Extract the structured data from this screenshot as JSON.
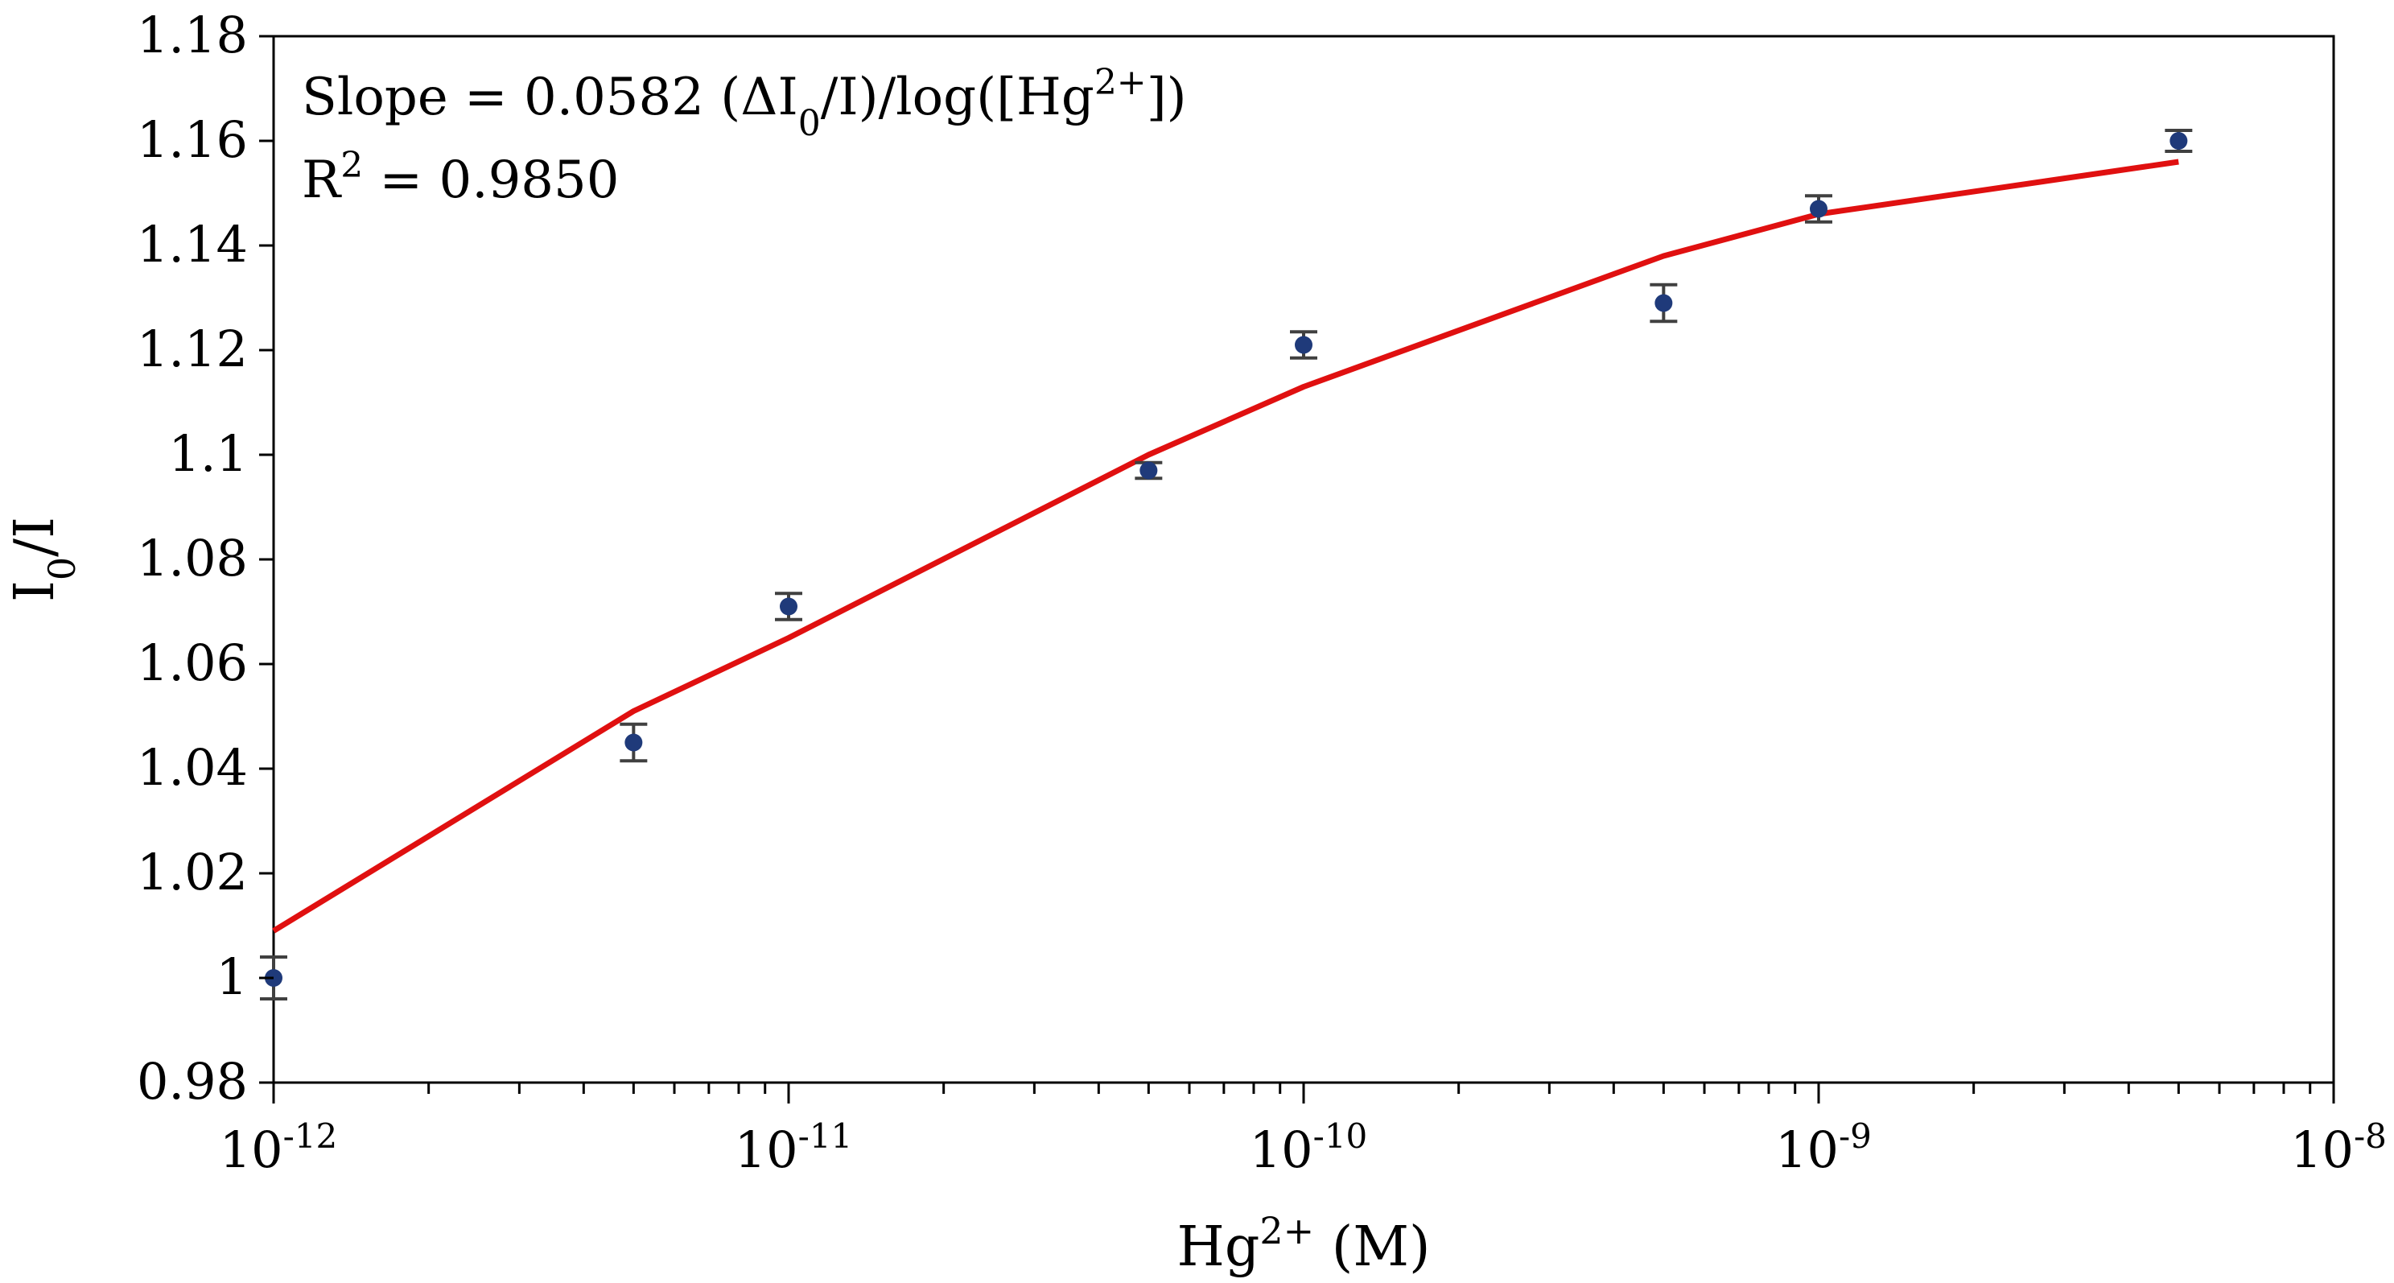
{
  "chart_data": {
    "type": "scatter",
    "xscale": "log",
    "xlim": [
      1e-12,
      1e-08
    ],
    "ylim": [
      0.98,
      1.18
    ],
    "grid": false,
    "legend": "none",
    "xlabel": {
      "base": "Hg",
      "sup": "2+",
      "unit": " (M)"
    },
    "ylabel": {
      "base": "I",
      "sub": "0",
      "rest": "/I"
    },
    "x_ticks": [
      {
        "value": 1e-12,
        "base": "10",
        "sup": "-12"
      },
      {
        "value": 1e-11,
        "base": "10",
        "sup": "-11"
      },
      {
        "value": 1e-10,
        "base": "10",
        "sup": "-10"
      },
      {
        "value": 1e-09,
        "base": "10",
        "sup": "-9"
      },
      {
        "value": 1e-08,
        "base": "10",
        "sup": "-8"
      }
    ],
    "y_ticks": [
      "0.98",
      "1",
      "1.02",
      "1.04",
      "1.06",
      "1.08",
      "1.1",
      "1.12",
      "1.14",
      "1.16",
      "1.18"
    ],
    "points": {
      "color": "#1f3a7a",
      "errorbar_color": "#404040",
      "x": [
        1e-12,
        5e-12,
        1e-11,
        5e-11,
        1e-10,
        5e-10,
        1e-09,
        5e-09
      ],
      "y": [
        1.0,
        1.045,
        1.071,
        1.097,
        1.121,
        1.129,
        1.147,
        1.16
      ],
      "err": [
        0.004,
        0.0035,
        0.0025,
        0.0015,
        0.0025,
        0.0035,
        0.0025,
        0.002
      ]
    },
    "fit_line": {
      "color": "#e01010",
      "x": [
        1e-12,
        5e-12,
        1e-11,
        5e-11,
        1e-10,
        5e-10,
        1e-09,
        5e-09
      ],
      "y": [
        1.009,
        1.051,
        1.065,
        1.1,
        1.113,
        1.138,
        1.146,
        1.156
      ]
    },
    "annotations": {
      "slope": {
        "prefix": "Slope = 0.0582 (ΔI",
        "sub": "0",
        "mid": "/I)/log([Hg",
        "sup": "2+",
        "suffix": "])"
      },
      "r2": {
        "prefix": "R",
        "sup": "2",
        "suffix": " = 0.9850"
      }
    }
  }
}
